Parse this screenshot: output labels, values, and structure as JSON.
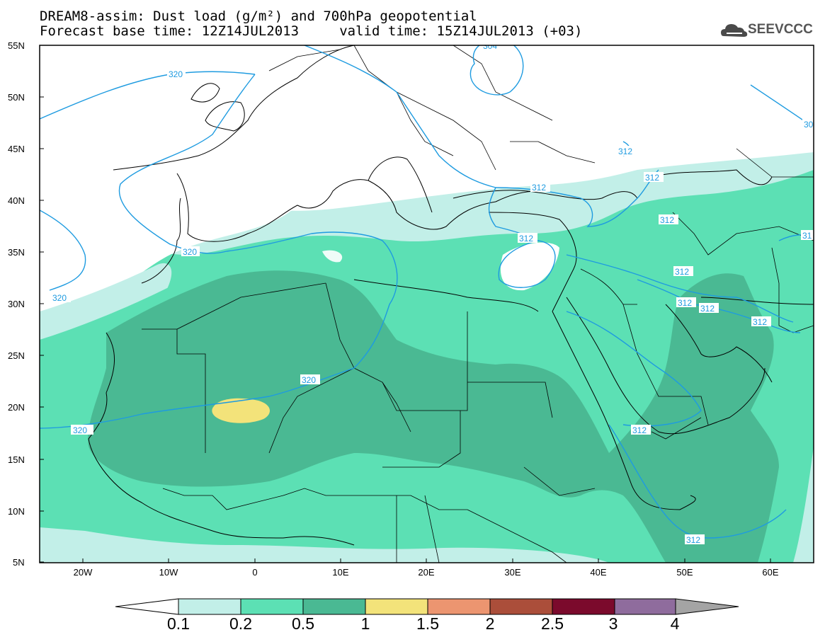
{
  "title": {
    "line1": "DREAM8-assim: Dust load (g/m²) and 700hPa geopotential",
    "line2": "Forecast base time: 12Z14JUL2013     valid time: 15Z14JUL2013 (+03)"
  },
  "logo": {
    "text": "SEEVCCC",
    "icon": "cloud-icon"
  },
  "map": {
    "lon_range": [
      -25,
      65
    ],
    "lat_range": [
      5,
      55
    ],
    "lat_ticks": [
      "5N",
      "10N",
      "15N",
      "20N",
      "25N",
      "30N",
      "35N",
      "40N",
      "45N",
      "50N",
      "55N"
    ],
    "lon_ticks": [
      "20W",
      "10W",
      "0",
      "10E",
      "20E",
      "30E",
      "40E",
      "50E",
      "60E"
    ],
    "contour_labels": [
      "320",
      "320",
      "320",
      "320",
      "320",
      "312",
      "312",
      "312",
      "312",
      "312",
      "312",
      "312",
      "312",
      "312",
      "312",
      "30",
      "31",
      "304"
    ],
    "contour_color": "#1e9be0"
  },
  "colorbar": {
    "labels": [
      "0.1",
      "0.2",
      "0.5",
      "1",
      "1.5",
      "2",
      "2.5",
      "3",
      "4"
    ],
    "colors": [
      "#ffffff",
      "#c2efe8",
      "#5ce0b4",
      "#4ab993",
      "#f3e37a",
      "#ec9570",
      "#ab4e3a",
      "#7b0a2c",
      "#8f6c9d",
      "#a4a4a4"
    ]
  }
}
